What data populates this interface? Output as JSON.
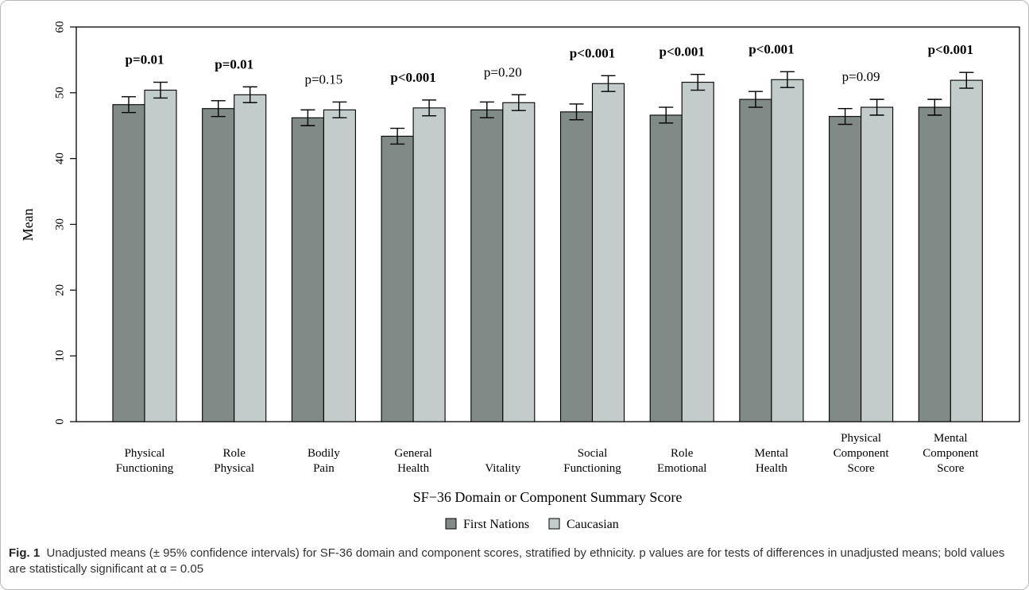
{
  "chart_data": {
    "type": "bar",
    "title": "",
    "xlabel": "SF−36 Domain or Component Summary Score",
    "ylabel": "Mean",
    "ylim": [
      0,
      60
    ],
    "yticks": [
      0,
      10,
      20,
      30,
      40,
      50,
      60
    ],
    "grid": false,
    "legend_position": "bottom-center",
    "categories": [
      [
        "Physical",
        "Functioning"
      ],
      [
        "Role",
        "Physical"
      ],
      [
        "Bodily",
        "Pain"
      ],
      [
        "General",
        "Health"
      ],
      [
        "Vitality"
      ],
      [
        "Social",
        "Functioning"
      ],
      [
        "Role",
        "Emotional"
      ],
      [
        "Mental",
        "Health"
      ],
      [
        "Physical",
        "Component",
        "Score"
      ],
      [
        "Mental",
        "Component",
        "Score"
      ]
    ],
    "series": [
      {
        "name": "First Nations",
        "color": "#808a87",
        "values": [
          48.2,
          47.6,
          46.2,
          43.4,
          47.4,
          47.1,
          46.6,
          49.0,
          46.4,
          47.8
        ],
        "ci_low": [
          47.0,
          46.4,
          45.0,
          42.2,
          46.2,
          45.9,
          45.4,
          47.8,
          45.2,
          46.6
        ],
        "ci_high": [
          49.4,
          48.8,
          47.4,
          44.6,
          48.6,
          48.3,
          47.8,
          50.2,
          47.6,
          49.0
        ]
      },
      {
        "name": "Caucasian",
        "color": "#c2cccb",
        "values": [
          50.4,
          49.7,
          47.4,
          47.7,
          48.5,
          51.4,
          51.6,
          52.0,
          47.8,
          51.9
        ],
        "ci_low": [
          49.2,
          48.5,
          46.2,
          46.5,
          47.3,
          50.2,
          50.4,
          50.8,
          46.6,
          50.7
        ],
        "ci_high": [
          51.6,
          50.9,
          48.6,
          48.9,
          49.7,
          52.6,
          52.8,
          53.2,
          49.0,
          53.1
        ]
      }
    ],
    "annotations": [
      {
        "text": "p=0.01",
        "bold": true
      },
      {
        "text": "p=0.01",
        "bold": true
      },
      {
        "text": "p=0.15",
        "bold": false
      },
      {
        "text": "p<0.001",
        "bold": true
      },
      {
        "text": "p=0.20",
        "bold": false
      },
      {
        "text": "p<0.001",
        "bold": true
      },
      {
        "text": "p<0.001",
        "bold": true
      },
      {
        "text": "p<0.001",
        "bold": true
      },
      {
        "text": "p=0.09",
        "bold": false
      },
      {
        "text": "p<0.001",
        "bold": true
      }
    ]
  },
  "caption": {
    "label": "Fig. 1",
    "text": "Unadjusted means (± 95% confidence intervals) for SF-36 domain and component scores, stratified by ethnicity. p values are for tests of differences in unadjusted means; bold values are statistically significant at α = 0.05"
  }
}
